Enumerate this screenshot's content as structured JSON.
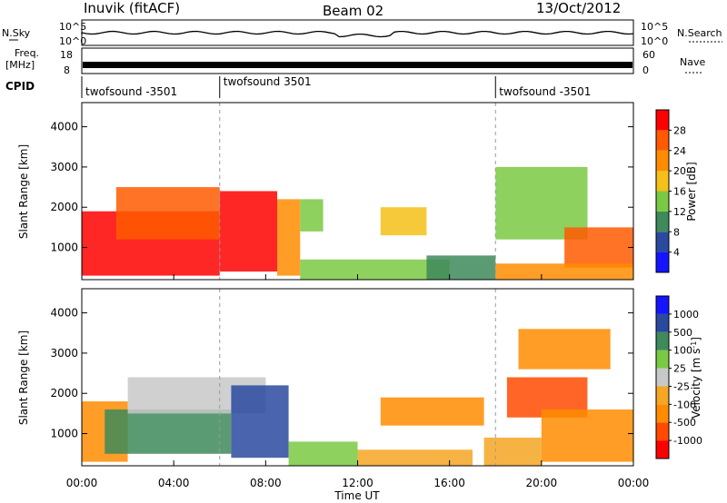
{
  "header": {
    "station": "Inuvik (fitACF)",
    "beam": "Beam 02",
    "date": "13/Oct/2012"
  },
  "top_strip": {
    "left_label": "N.Sky",
    "right_label": "N.Search",
    "left_ticks": [
      "10^5",
      "10^0"
    ],
    "right_ticks": [
      "10^5",
      "10^0"
    ]
  },
  "freq_strip": {
    "left_label_1": "Freq.",
    "left_label_2": "[MHz]",
    "right_label": "Nave",
    "left_ticks": [
      "18",
      "8"
    ],
    "right_ticks": [
      "60",
      "0"
    ]
  },
  "cpid": {
    "label": "CPID",
    "segments": [
      {
        "start_hour": 0,
        "end_hour": 6,
        "text": "twofsound -3501"
      },
      {
        "start_hour": 6,
        "end_hour": 18,
        "text": "twofsound 3501"
      },
      {
        "start_hour": 18,
        "end_hour": 24,
        "text": "twofsound -3501"
      }
    ]
  },
  "colors": {
    "power_scale": [
      "#1414ff",
      "#2a4aa0",
      "#3e8a5a",
      "#7ac943",
      "#f5c018",
      "#ff8c00",
      "#ff5a00",
      "#ff0000"
    ],
    "velocity_scale": [
      "#ff0000",
      "#ff4a00",
      "#ff8c00",
      "#f5a623",
      "#c8c8c8",
      "#7ac943",
      "#3e8a5a",
      "#2a4aa0",
      "#1414ff"
    ]
  },
  "chart_data": [
    {
      "type": "heatmap",
      "name": "power",
      "xlabel": "",
      "ylabel": "Slant Range [km]",
      "xlim": [
        0,
        24
      ],
      "ylim": [
        200,
        4600
      ],
      "yticks": [
        1000,
        2000,
        3000,
        4000
      ],
      "colorbar_label": "Power [dB]",
      "colorbar_ticks": [
        "4",
        "8",
        "12",
        "16",
        "20",
        "24",
        "28"
      ],
      "regions": [
        {
          "t0": 0.0,
          "t1": 6.0,
          "r0": 300,
          "r1": 1900,
          "level": 7
        },
        {
          "t0": 1.5,
          "t1": 6.0,
          "r0": 1200,
          "r1": 2500,
          "level": 6
        },
        {
          "t0": 6.0,
          "t1": 8.5,
          "r0": 400,
          "r1": 2400,
          "level": 7
        },
        {
          "t0": 8.5,
          "t1": 9.5,
          "r0": 300,
          "r1": 2200,
          "level": 5
        },
        {
          "t0": 9.5,
          "t1": 10.5,
          "r0": 1400,
          "r1": 2200,
          "level": 3
        },
        {
          "t0": 9.5,
          "t1": 16.0,
          "r0": 200,
          "r1": 700,
          "level": 3
        },
        {
          "t0": 13.0,
          "t1": 15.0,
          "r0": 1300,
          "r1": 2000,
          "level": 4
        },
        {
          "t0": 15.0,
          "t1": 18.0,
          "r0": 200,
          "r1": 800,
          "level": 2
        },
        {
          "t0": 18.0,
          "t1": 22.0,
          "r0": 1200,
          "r1": 3000,
          "level": 3
        },
        {
          "t0": 21.0,
          "t1": 24.0,
          "r0": 500,
          "r1": 1500,
          "level": 6
        },
        {
          "t0": 18.0,
          "t1": 24.0,
          "r0": 200,
          "r1": 600,
          "level": 5
        }
      ]
    },
    {
      "type": "heatmap",
      "name": "velocity",
      "xlabel": "Time UT",
      "ylabel": "Slant Range [km]",
      "xlim": [
        0,
        24
      ],
      "ylim": [
        200,
        4600
      ],
      "xticks": [
        "00:00",
        "04:00",
        "08:00",
        "12:00",
        "16:00",
        "20:00",
        "00:00"
      ],
      "yticks": [
        1000,
        2000,
        3000,
        4000
      ],
      "colorbar_label": "Velocity [m s",
      "colorbar_label_sup": "-1",
      "colorbar_label_end": "]",
      "colorbar_ticks": [
        "-1000",
        "-500",
        "-100",
        "-25",
        "25",
        "100",
        "500",
        "1000"
      ],
      "regions": [
        {
          "t0": 0.0,
          "t1": 2.0,
          "r0": 300,
          "r1": 1800,
          "level": 2
        },
        {
          "t0": 1.0,
          "t1": 6.5,
          "r0": 500,
          "r1": 1600,
          "level": 6
        },
        {
          "t0": 2.0,
          "t1": 8.0,
          "r0": 1500,
          "r1": 2400,
          "level": 4
        },
        {
          "t0": 6.5,
          "t1": 9.0,
          "r0": 400,
          "r1": 2200,
          "level": 7
        },
        {
          "t0": 9.0,
          "t1": 12.0,
          "r0": 200,
          "r1": 800,
          "level": 5
        },
        {
          "t0": 12.0,
          "t1": 17.0,
          "r0": 200,
          "r1": 600,
          "level": 3
        },
        {
          "t0": 13.0,
          "t1": 17.5,
          "r0": 1200,
          "r1": 1900,
          "level": 2
        },
        {
          "t0": 17.5,
          "t1": 20.0,
          "r0": 200,
          "r1": 900,
          "level": 3
        },
        {
          "t0": 18.5,
          "t1": 22.0,
          "r0": 1400,
          "r1": 2400,
          "level": 1
        },
        {
          "t0": 20.0,
          "t1": 24.0,
          "r0": 300,
          "r1": 1600,
          "level": 2
        },
        {
          "t0": 19.0,
          "t1": 23.0,
          "r0": 2600,
          "r1": 3600,
          "level": 2
        }
      ]
    }
  ]
}
